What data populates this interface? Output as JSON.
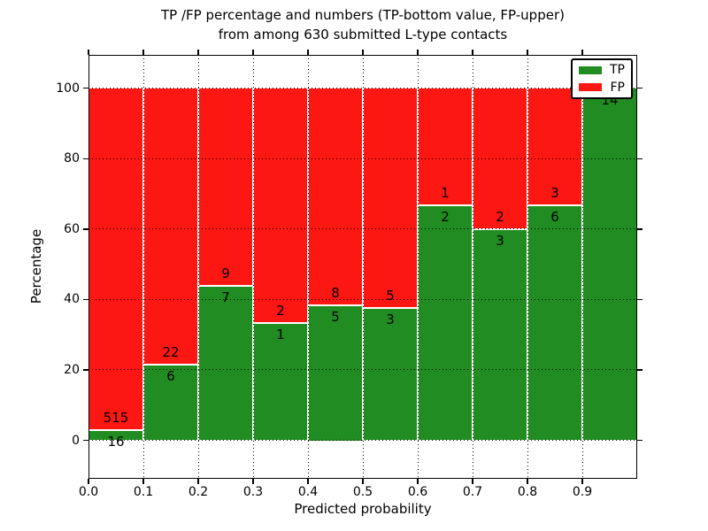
{
  "title": {
    "line1": "TP /FP percentage and numbers (TP-bottom value, FP-upper)",
    "line2": "from among 630 submitted L-type contacts"
  },
  "axes": {
    "xlabel": "Predicted probability",
    "ylabel": "Percentage"
  },
  "chart_data": {
    "type": "bar",
    "stacked": true,
    "normalized": "each bin stacks TP+FP to 100%",
    "title": "TP /FP percentage and numbers (TP-bottom value, FP-upper) from among 630 submitted L-type contacts",
    "xlabel": "Predicted probability",
    "ylabel": "Percentage",
    "total_contacts": 630,
    "bins": [
      "0.0-0.1",
      "0.1-0.2",
      "0.2-0.3",
      "0.3-0.4",
      "0.4-0.5",
      "0.5-0.6",
      "0.6-0.7",
      "0.7-0.8",
      "0.8-0.9",
      "0.9-1.0"
    ],
    "series": [
      {
        "name": "TP",
        "color": "#218c21",
        "counts": [
          16,
          6,
          7,
          1,
          5,
          3,
          2,
          3,
          6,
          14
        ]
      },
      {
        "name": "FP",
        "color": "#fc1713",
        "counts": [
          515,
          22,
          9,
          2,
          8,
          5,
          1,
          2,
          3,
          0
        ]
      }
    ],
    "tp_percent": [
      3.0,
      21.4,
      43.8,
      33.3,
      38.5,
      37.5,
      66.7,
      60.0,
      66.7,
      100.0
    ],
    "x_ticks": [
      "0.0",
      "0.1",
      "0.2",
      "0.3",
      "0.4",
      "0.5",
      "0.6",
      "0.7",
      "0.8",
      "0.9"
    ],
    "y_ticks": [
      0,
      20,
      40,
      60,
      80,
      100
    ],
    "xlim": [
      0.0,
      1.0
    ],
    "ylim": [
      -11,
      109.5
    ],
    "grid": "dotted",
    "legend_position": "upper right"
  }
}
